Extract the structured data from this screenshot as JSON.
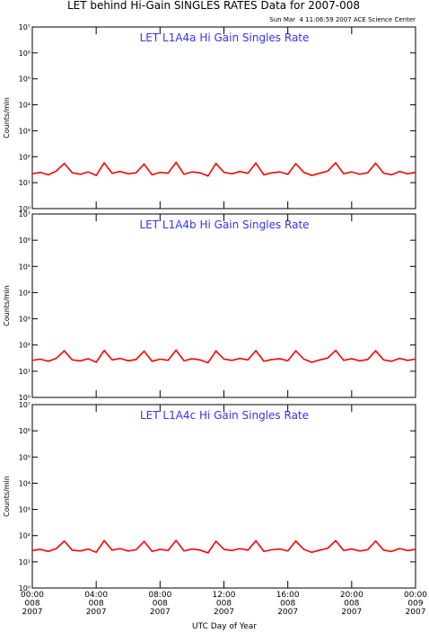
{
  "title": "LET behind Hi-Gain SINGLES RATES Data for 2007-008",
  "timestamp": "Sun Mar  4 11:06:59 2007 ACE Science Center",
  "xlabel": "UTC Day of Year",
  "chart_data": [
    {
      "type": "line",
      "title": "LET L1A4a Hi Gain Singles Rate",
      "ylabel": "Counts/min",
      "log": true,
      "ylim": [
        1,
        10000000
      ],
      "yticks": [
        {
          "value": 1,
          "label": "10⁰"
        },
        {
          "value": 10,
          "label": "10¹"
        },
        {
          "value": 100,
          "label": "10²"
        },
        {
          "value": 1000,
          "label": "10³"
        },
        {
          "value": 10000,
          "label": "10⁴"
        },
        {
          "value": 100000,
          "label": "10⁵"
        },
        {
          "value": 1000000,
          "label": "10⁶"
        },
        {
          "value": 10000000,
          "label": "10⁷"
        }
      ],
      "xlim": [
        0,
        24
      ],
      "xticks": [
        0,
        4,
        8,
        12,
        16,
        20,
        24
      ],
      "series": [
        {
          "color": "#ff0000",
          "x": [
            0,
            0.5,
            1,
            1.5,
            2,
            2.5,
            3,
            3.5,
            4,
            4.5,
            5,
            5.5,
            6,
            6.5,
            7,
            7.5,
            8,
            8.5,
            9,
            9.5,
            10,
            10.5,
            11,
            11.5,
            12,
            12.5,
            13,
            13.5,
            14,
            14.5,
            15,
            15.5,
            16,
            16.5,
            17,
            17.5,
            18,
            18.5,
            19,
            19.5,
            20,
            20.5,
            21,
            21.5,
            22,
            22.5,
            23,
            23.5,
            24
          ],
          "values": [
            22,
            25,
            20,
            28,
            55,
            24,
            21,
            26,
            19,
            58,
            23,
            27,
            22,
            24,
            52,
            20,
            25,
            23,
            60,
            21,
            26,
            24,
            18,
            55,
            25,
            22,
            27,
            23,
            57,
            20,
            24,
            26,
            21,
            54,
            25,
            19,
            23,
            28,
            58,
            22,
            26,
            21,
            24,
            56,
            23,
            20,
            27,
            22,
            25
          ]
        }
      ]
    },
    {
      "type": "line",
      "title": "LET L1A4b Hi Gain Singles Rate",
      "ylabel": "Counts/min",
      "log": true,
      "ylim": [
        1,
        10000000
      ],
      "yticks": [
        {
          "value": 1,
          "label": "10⁰"
        },
        {
          "value": 10,
          "label": "10¹"
        },
        {
          "value": 100,
          "label": "10²"
        },
        {
          "value": 1000,
          "label": "10³"
        },
        {
          "value": 10000,
          "label": "10⁴"
        },
        {
          "value": 100000,
          "label": "10⁵"
        },
        {
          "value": 1000000,
          "label": "10⁶"
        },
        {
          "value": 10000000,
          "label": "10⁷"
        }
      ],
      "xlim": [
        0,
        24
      ],
      "xticks": [
        0,
        4,
        8,
        12,
        16,
        20,
        24
      ],
      "series": [
        {
          "color": "#ff0000",
          "x": [
            0,
            0.5,
            1,
            1.5,
            2,
            2.5,
            3,
            3.5,
            4,
            4.5,
            5,
            5.5,
            6,
            6.5,
            7,
            7.5,
            8,
            8.5,
            9,
            9.5,
            10,
            10.5,
            11,
            11.5,
            12,
            12.5,
            13,
            13.5,
            14,
            14.5,
            15,
            15.5,
            16,
            16.5,
            17,
            17.5,
            18,
            18.5,
            19,
            19.5,
            20,
            20.5,
            21,
            21.5,
            22,
            22.5,
            23,
            23.5,
            24
          ],
          "values": [
            26,
            29,
            24,
            31,
            60,
            27,
            25,
            30,
            22,
            62,
            27,
            31,
            25,
            28,
            58,
            24,
            29,
            26,
            63,
            25,
            30,
            27,
            21,
            59,
            29,
            26,
            31,
            27,
            61,
            24,
            28,
            30,
            25,
            60,
            29,
            22,
            27,
            32,
            62,
            26,
            30,
            25,
            28,
            60,
            27,
            24,
            31,
            26,
            29
          ]
        }
      ]
    },
    {
      "type": "line",
      "title": "LET L1A4c Hi Gain Singles Rate",
      "ylabel": "Counts/min",
      "log": true,
      "ylim": [
        1,
        10000000
      ],
      "yticks": [
        {
          "value": 1,
          "label": "10⁰"
        },
        {
          "value": 10,
          "label": "10¹"
        },
        {
          "value": 100,
          "label": "10²"
        },
        {
          "value": 1000,
          "label": "10³"
        },
        {
          "value": 10000,
          "label": "10⁴"
        },
        {
          "value": 100000,
          "label": "10⁵"
        },
        {
          "value": 1000000,
          "label": "10⁶"
        },
        {
          "value": 10000000,
          "label": "10⁷"
        }
      ],
      "xlim": [
        0,
        24
      ],
      "xticks": [
        {
          "value": 0,
          "label": "00:00\n008\n2007"
        },
        {
          "value": 4,
          "label": "04:00\n008\n2007"
        },
        {
          "value": 8,
          "label": "08:00\n008\n2007"
        },
        {
          "value": 12,
          "label": "12:00\n008\n2007"
        },
        {
          "value": 16,
          "label": "16:00\n008\n2007"
        },
        {
          "value": 20,
          "label": "20:00\n008\n2007"
        },
        {
          "value": 24,
          "label": "00:00\n009\n2007"
        }
      ],
      "series": [
        {
          "color": "#ff0000",
          "x": [
            0,
            0.5,
            1,
            1.5,
            2,
            2.5,
            3,
            3.5,
            4,
            4.5,
            5,
            5.5,
            6,
            6.5,
            7,
            7.5,
            8,
            8.5,
            9,
            9.5,
            10,
            10.5,
            11,
            11.5,
            12,
            12.5,
            13,
            13.5,
            14,
            14.5,
            15,
            15.5,
            16,
            16.5,
            17,
            17.5,
            18,
            18.5,
            19,
            19.5,
            20,
            20.5,
            21,
            21.5,
            22,
            22.5,
            23,
            23.5,
            24
          ],
          "values": [
            27,
            30,
            25,
            32,
            62,
            28,
            26,
            31,
            23,
            64,
            28,
            32,
            26,
            29,
            60,
            25,
            30,
            27,
            65,
            26,
            31,
            28,
            22,
            61,
            30,
            27,
            32,
            28,
            63,
            25,
            29,
            31,
            26,
            62,
            30,
            23,
            28,
            33,
            64,
            27,
            31,
            26,
            29,
            62,
            28,
            25,
            32,
            27,
            30
          ]
        }
      ]
    }
  ]
}
